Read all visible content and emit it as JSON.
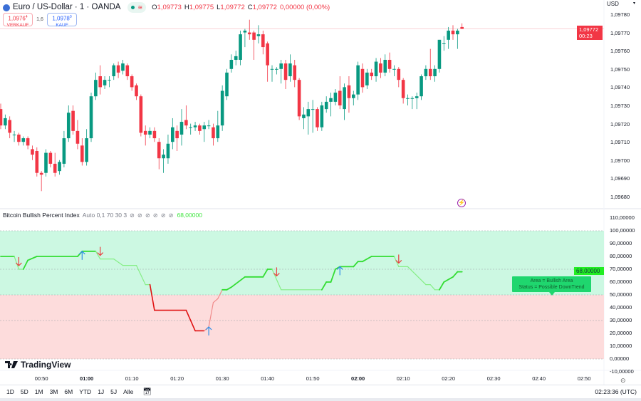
{
  "header": {
    "symbol_title": "Euro / US-Dollar · 1 · OANDA",
    "ohlc": {
      "o_label": "O",
      "o": "1,09773",
      "h_label": "H",
      "h": "1,09775",
      "l_label": "L",
      "l": "1,09772",
      "c_label": "C",
      "c": "1,09772",
      "change": "0,00000 (0,00%)"
    },
    "sell": {
      "price": "1,0976",
      "price_sup": "4",
      "label": "VERKAUF"
    },
    "spread": "1,6",
    "buy": {
      "price": "1,0978",
      "price_sup": "0",
      "label": "KAUF"
    },
    "currency": "USD"
  },
  "indicator_legend": {
    "name": "Bitcoin Bullish Percent Index",
    "params": "Auto 0,1 70 30 3",
    "placeholders": "⊘ ⊘ ⊘ ⊘ ⊘ ⊘",
    "value": "68,00000"
  },
  "price_axis": [
    "1,09780",
    "1,09770",
    "1,09760",
    "1,09750",
    "1,09740",
    "1,09730",
    "1,09720",
    "1,09710",
    "1,09700",
    "1,09690",
    "1,09680"
  ],
  "last_price_tag": {
    "price": "1,09772",
    "countdown": "00:23"
  },
  "indicator_axis": [
    "110,00000",
    "100,00000",
    "90,00000",
    "80,00000",
    "70,00000",
    "60,00000",
    "50,00000",
    "40,00000",
    "30,00000",
    "20,00000",
    "10,00000",
    "0,00000",
    "-10,00000"
  ],
  "indicator_value_tag": "68,00000",
  "tooltip": {
    "line1": "Area = Bullish Area",
    "line2": "Status =  Possible DownTrend"
  },
  "time_axis": [
    {
      "t": "00:50",
      "bold": false
    },
    {
      "t": "01:00",
      "bold": true
    },
    {
      "t": "01:10",
      "bold": false
    },
    {
      "t": "01:20",
      "bold": false
    },
    {
      "t": "01:30",
      "bold": false
    },
    {
      "t": "01:40",
      "bold": false
    },
    {
      "t": "01:50",
      "bold": false
    },
    {
      "t": "02:00",
      "bold": true
    },
    {
      "t": "02:10",
      "bold": false
    },
    {
      "t": "02:20",
      "bold": false
    },
    {
      "t": "02:30",
      "bold": false
    },
    {
      "t": "02:40",
      "bold": false
    },
    {
      "t": "02:50",
      "bold": false
    }
  ],
  "ranges": [
    "1D",
    "5D",
    "1M",
    "3M",
    "6M",
    "YTD",
    "1J",
    "5J",
    "Alle"
  ],
  "clock": "02:23:36 (UTC)",
  "brand": "TradingView",
  "colors": {
    "up": "#089981",
    "down": "#f23645",
    "bull_area": "#ccf8e2",
    "bear_area": "#fddcdc",
    "ind_up": "#33dd33",
    "ind_down_bull": "#86ee86",
    "ind_down_bear": "#e01010",
    "ind_up_bear": "#f08a8a",
    "buy_arrow": "#2f8fe8",
    "sell_arrow": "#e84040"
  },
  "chart_data": [
    {
      "type": "candlestick",
      "first_candle_time": "00:41",
      "interval_minutes": 1,
      "ylim": [
        1.09674,
        1.09788
      ],
      "candles_ohlc": [
        [
          1.09728,
          1.09731,
          1.09717,
          1.09719
        ],
        [
          1.09719,
          1.09725,
          1.09717,
          1.09723
        ],
        [
          1.09722,
          1.09724,
          1.09712,
          1.09715
        ],
        [
          1.09714,
          1.09716,
          1.0971,
          1.09714
        ],
        [
          1.09714,
          1.09715,
          1.09708,
          1.0971
        ],
        [
          1.0971,
          1.09713,
          1.09708,
          1.09712
        ],
        [
          1.09712,
          1.09713,
          1.09706,
          1.09708
        ],
        [
          1.09706,
          1.09708,
          1.097,
          1.09703
        ],
        [
          1.09705,
          1.09707,
          1.09691,
          1.09693
        ],
        [
          1.09693,
          1.09694,
          1.09683,
          1.09692
        ],
        [
          1.09693,
          1.09706,
          1.09691,
          1.09704
        ],
        [
          1.09704,
          1.09705,
          1.09696,
          1.09698
        ],
        [
          1.09698,
          1.09704,
          1.09691,
          1.09693
        ],
        [
          1.09694,
          1.097,
          1.09692,
          1.09699
        ],
        [
          1.09698,
          1.09716,
          1.09696,
          1.09712
        ],
        [
          1.09712,
          1.0973,
          1.0971,
          1.09726
        ],
        [
          1.09727,
          1.0973,
          1.09714,
          1.09716
        ],
        [
          1.09716,
          1.09722,
          1.09706,
          1.09709
        ],
        [
          1.09708,
          1.09712,
          1.09697,
          1.09699
        ],
        [
          1.09699,
          1.09717,
          1.09697,
          1.09712
        ],
        [
          1.09712,
          1.09737,
          1.0971,
          1.09735
        ],
        [
          1.09735,
          1.09748,
          1.09733,
          1.09744
        ],
        [
          1.09746,
          1.09752,
          1.09736,
          1.0974
        ],
        [
          1.09741,
          1.09746,
          1.09739,
          1.09744
        ],
        [
          1.09744,
          1.09746,
          1.0974,
          1.09744
        ],
        [
          1.09746,
          1.09753,
          1.09744,
          1.09752
        ],
        [
          1.09752,
          1.09754,
          1.09745,
          1.09748
        ],
        [
          1.09749,
          1.09755,
          1.09747,
          1.09753
        ],
        [
          1.09752,
          1.09753,
          1.09744,
          1.09746
        ],
        [
          1.09746,
          1.09747,
          1.09738,
          1.0974
        ],
        [
          1.09741,
          1.09742,
          1.09733,
          1.09735
        ],
        [
          1.09735,
          1.09736,
          1.09713,
          1.09715
        ],
        [
          1.09716,
          1.09719,
          1.09708,
          1.09714
        ],
        [
          1.09714,
          1.09718,
          1.09712,
          1.09716
        ],
        [
          1.09716,
          1.09718,
          1.0971,
          1.09712
        ],
        [
          1.0971,
          1.09712,
          1.09695,
          1.09701
        ],
        [
          1.09701,
          1.09706,
          1.09693,
          1.09703
        ],
        [
          1.09701,
          1.09714,
          1.09698,
          1.09709
        ],
        [
          1.0971,
          1.09723,
          1.09706,
          1.09718
        ],
        [
          1.09716,
          1.09719,
          1.09705,
          1.09712
        ],
        [
          1.09714,
          1.09728,
          1.09708,
          1.09721
        ],
        [
          1.09722,
          1.0973,
          1.09717,
          1.09719
        ],
        [
          1.09718,
          1.0972,
          1.09714,
          1.09718
        ],
        [
          1.09718,
          1.09721,
          1.09716,
          1.09719
        ],
        [
          1.09719,
          1.0972,
          1.09714,
          1.09716
        ],
        [
          1.09717,
          1.09721,
          1.0971,
          1.09719
        ],
        [
          1.09719,
          1.09722,
          1.09717,
          1.09719
        ],
        [
          1.09718,
          1.0972,
          1.09708,
          1.09712
        ],
        [
          1.09712,
          1.09727,
          1.0971,
          1.09719
        ],
        [
          1.09719,
          1.09741,
          1.09716,
          1.09738
        ],
        [
          1.09735,
          1.0975,
          1.09733,
          1.09748
        ],
        [
          1.0975,
          1.09758,
          1.09748,
          1.09755
        ],
        [
          1.09755,
          1.0976,
          1.09752,
          1.09757
        ],
        [
          1.09755,
          1.09771,
          1.09752,
          1.09769
        ],
        [
          1.0977,
          1.09772,
          1.09762,
          1.09771
        ],
        [
          1.0977,
          1.09777,
          1.09766,
          1.09769
        ],
        [
          1.0977,
          1.09771,
          1.09755,
          1.09766
        ],
        [
          1.09768,
          1.09774,
          1.09764,
          1.09769
        ],
        [
          1.09769,
          1.09771,
          1.09758,
          1.09762
        ],
        [
          1.09764,
          1.09765,
          1.09743,
          1.09752
        ],
        [
          1.0975,
          1.09752,
          1.09743,
          1.0975
        ],
        [
          1.0975,
          1.09751,
          1.09747,
          1.0975
        ],
        [
          1.0975,
          1.09755,
          1.09742,
          1.09753
        ],
        [
          1.09753,
          1.09755,
          1.09739,
          1.09744
        ],
        [
          1.09746,
          1.09758,
          1.09743,
          1.09753
        ],
        [
          1.09752,
          1.09755,
          1.0974,
          1.09744
        ],
        [
          1.09744,
          1.09745,
          1.09722,
          1.09724
        ],
        [
          1.09723,
          1.09729,
          1.09717,
          1.09725
        ],
        [
          1.09724,
          1.09732,
          1.09714,
          1.09728
        ],
        [
          1.09728,
          1.09733,
          1.09715,
          1.09728
        ],
        [
          1.09728,
          1.09729,
          1.09716,
          1.09718
        ],
        [
          1.09718,
          1.09732,
          1.09716,
          1.0973
        ],
        [
          1.09728,
          1.09735,
          1.09726,
          1.09732
        ],
        [
          1.09732,
          1.09737,
          1.09724,
          1.09734
        ],
        [
          1.09732,
          1.09739,
          1.0973,
          1.09737
        ],
        [
          1.09738,
          1.09746,
          1.09728,
          1.0973
        ],
        [
          1.09728,
          1.09742,
          1.09722,
          1.0974
        ],
        [
          1.09741,
          1.09746,
          1.09726,
          1.09734
        ],
        [
          1.09734,
          1.09738,
          1.0973,
          1.09736
        ],
        [
          1.09736,
          1.09754,
          1.09733,
          1.09752
        ],
        [
          1.0975,
          1.09753,
          1.09737,
          1.0974
        ],
        [
          1.09741,
          1.0975,
          1.09739,
          1.09748
        ],
        [
          1.09748,
          1.0975,
          1.09744,
          1.09746
        ],
        [
          1.09746,
          1.09756,
          1.09743,
          1.09754
        ],
        [
          1.09753,
          1.09756,
          1.09745,
          1.09748
        ],
        [
          1.09748,
          1.09758,
          1.09746,
          1.09755
        ],
        [
          1.09755,
          1.09759,
          1.09748,
          1.0975
        ],
        [
          1.0975,
          1.09752,
          1.09746,
          1.0975
        ],
        [
          1.0975,
          1.09751,
          1.0974,
          1.09744
        ],
        [
          1.09744,
          1.09745,
          1.09731,
          1.09734
        ],
        [
          1.09734,
          1.09736,
          1.0973,
          1.09734
        ],
        [
          1.09734,
          1.09735,
          1.09728,
          1.09734
        ],
        [
          1.09734,
          1.09737,
          1.09728,
          1.09735
        ],
        [
          1.09735,
          1.09747,
          1.09733,
          1.09746
        ],
        [
          1.09746,
          1.09752,
          1.09744,
          1.0975
        ],
        [
          1.0975,
          1.09761,
          1.09744,
          1.09746
        ],
        [
          1.09746,
          1.09752,
          1.09743,
          1.0975
        ],
        [
          1.0975,
          1.09766,
          1.09748,
          1.09766
        ],
        [
          1.09764,
          1.09768,
          1.0976,
          1.09764
        ],
        [
          1.09766,
          1.09773,
          1.09761,
          1.09771
        ],
        [
          1.09771,
          1.09774,
          1.09766,
          1.09769
        ],
        [
          1.09769,
          1.09772,
          1.09761,
          1.09771
        ],
        [
          1.09773,
          1.09775,
          1.09772,
          1.09772
        ]
      ]
    },
    {
      "type": "line",
      "name": "Bitcoin Bullish Percent Index",
      "ylim": [
        -10,
        110
      ],
      "bull_zone": [
        50,
        100
      ],
      "bear_zone": [
        0,
        50
      ],
      "levels": [
        100,
        70,
        50,
        30,
        0
      ],
      "points": [
        [
          "00:41",
          80
        ],
        [
          "00:44",
          80
        ],
        [
          "00:45",
          70
        ],
        [
          "00:46",
          70
        ],
        [
          "00:47",
          77
        ],
        [
          "00:49",
          80
        ],
        [
          "00:58",
          80
        ],
        [
          "00:59",
          84
        ],
        [
          "01:02",
          84
        ],
        [
          "01:03",
          78
        ],
        [
          "01:06",
          78
        ],
        [
          "01:08",
          73
        ],
        [
          "01:11",
          73
        ],
        [
          "01:13",
          58
        ],
        [
          "01:14",
          58
        ],
        [
          "01:15",
          38
        ],
        [
          "01:22",
          38
        ],
        [
          "01:24",
          22
        ],
        [
          "01:26",
          22
        ],
        [
          "01:27",
          25
        ],
        [
          "01:28",
          44
        ],
        [
          "01:29",
          47
        ],
        [
          "01:30",
          54
        ],
        [
          "01:31",
          54
        ],
        [
          "01:32",
          56
        ],
        [
          "01:35",
          64
        ],
        [
          "01:39",
          64
        ],
        [
          "01:40",
          70
        ],
        [
          "01:41",
          70
        ],
        [
          "01:43",
          54
        ],
        [
          "01:52",
          54
        ],
        [
          "01:53",
          60
        ],
        [
          "01:54",
          60
        ],
        [
          "01:55",
          70
        ],
        [
          "01:56",
          72
        ],
        [
          "01:59",
          72
        ],
        [
          "02:00",
          76
        ],
        [
          "02:01",
          76
        ],
        [
          "02:03",
          80
        ],
        [
          "02:08",
          80
        ],
        [
          "02:09",
          72
        ],
        [
          "02:11",
          72
        ],
        [
          "02:15",
          58
        ],
        [
          "02:16",
          58
        ],
        [
          "02:17",
          54
        ],
        [
          "02:18",
          54
        ],
        [
          "02:19",
          60
        ],
        [
          "02:21",
          64
        ],
        [
          "02:22",
          68
        ],
        [
          "02:23",
          68
        ]
      ],
      "signals": [
        {
          "time": "00:45",
          "dir": "down"
        },
        {
          "time": "00:59",
          "dir": "up"
        },
        {
          "time": "01:03",
          "dir": "down"
        },
        {
          "time": "01:27",
          "dir": "up"
        },
        {
          "time": "01:42",
          "dir": "down"
        },
        {
          "time": "01:56",
          "dir": "up"
        },
        {
          "time": "02:09",
          "dir": "down"
        }
      ]
    }
  ]
}
